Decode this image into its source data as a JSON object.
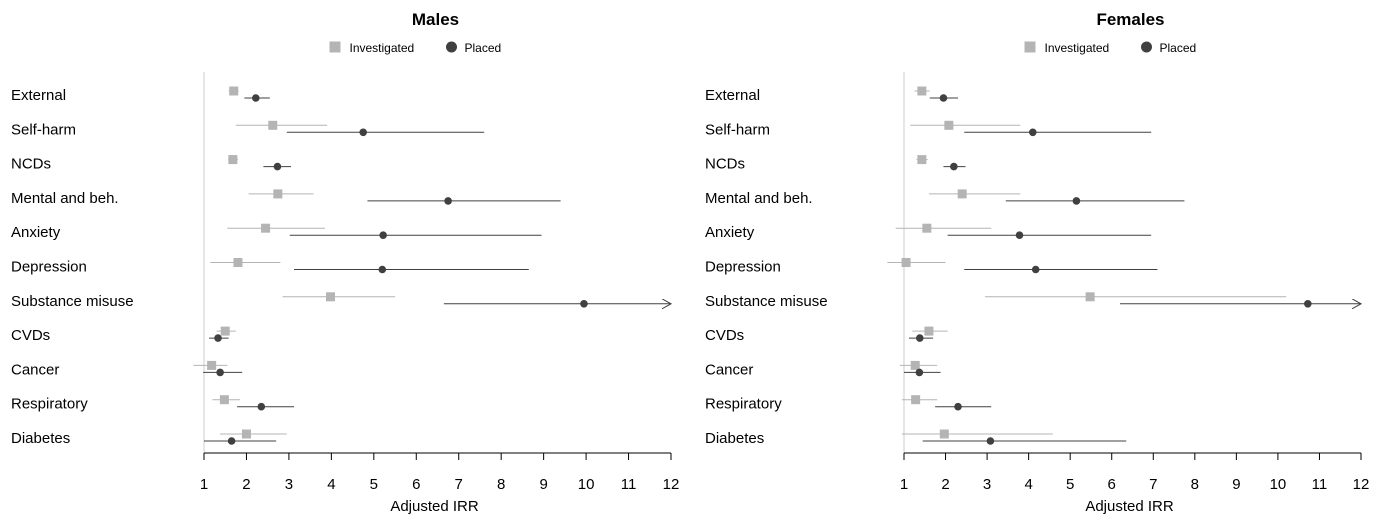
{
  "colors": {
    "investigated": "#b4b4b4",
    "placed": "#404040",
    "reference_line": "#cccccc",
    "axis": "#000000"
  },
  "chart_data": [
    {
      "type": "forest",
      "title": "Males",
      "xlabel": "Adjusted IRR",
      "xlim": [
        1,
        12
      ],
      "xticks": [
        1,
        2,
        3,
        4,
        5,
        6,
        7,
        8,
        9,
        10,
        11,
        12
      ],
      "reference_line": 1,
      "legend": {
        "placement": "top-center",
        "entries": [
          "Investigated",
          "Placed"
        ]
      },
      "categories": [
        "External",
        "Self-harm",
        "NCDs",
        "Mental and beh.",
        "Anxiety",
        "Depression",
        "Substance misuse",
        "CVDs",
        "Cancer",
        "Respiratory",
        "Diabetes"
      ],
      "series": [
        {
          "name": "Investigated",
          "marker": "square",
          "values": [
            1.7,
            2.62,
            1.68,
            2.74,
            2.45,
            1.8,
            3.98,
            1.5,
            1.18,
            1.48,
            2.0
          ],
          "lower": [
            1.58,
            1.75,
            1.57,
            2.05,
            1.55,
            1.15,
            2.85,
            1.3,
            0.75,
            1.2,
            1.38
          ],
          "upper": [
            1.82,
            3.9,
            1.8,
            3.58,
            3.85,
            2.8,
            5.5,
            1.75,
            1.55,
            1.85,
            2.95
          ]
        },
        {
          "name": "Placed",
          "marker": "circle",
          "values": [
            2.22,
            4.75,
            2.73,
            6.75,
            5.22,
            5.2,
            9.95,
            1.33,
            1.38,
            2.35,
            1.65
          ],
          "lower": [
            1.95,
            2.95,
            2.4,
            4.85,
            3.02,
            3.12,
            6.65,
            1.12,
            0.98,
            1.78,
            1.0
          ],
          "upper": [
            2.55,
            7.6,
            3.05,
            9.4,
            8.95,
            8.65,
            12.0,
            1.58,
            1.9,
            3.12,
            2.7
          ],
          "upper_truncated": [
            false,
            false,
            false,
            false,
            false,
            false,
            true,
            false,
            false,
            false,
            false
          ]
        }
      ]
    },
    {
      "type": "forest",
      "title": "Females",
      "xlabel": "Adjusted IRR",
      "xlim": [
        1,
        12
      ],
      "xticks": [
        1,
        2,
        3,
        4,
        5,
        6,
        7,
        8,
        9,
        10,
        11,
        12
      ],
      "reference_line": 1,
      "legend": {
        "placement": "top-center",
        "entries": [
          "Investigated",
          "Placed"
        ]
      },
      "categories": [
        "External",
        "Self-harm",
        "NCDs",
        "Mental and beh.",
        "Anxiety",
        "Depression",
        "Substance misuse",
        "CVDs",
        "Cancer",
        "Respiratory",
        "Diabetes"
      ],
      "series": [
        {
          "name": "Investigated",
          "marker": "square",
          "values": [
            1.43,
            2.08,
            1.43,
            2.4,
            1.55,
            1.05,
            5.48,
            1.6,
            1.27,
            1.28,
            1.97
          ],
          "lower": [
            1.25,
            1.15,
            1.3,
            1.6,
            0.8,
            0.6,
            2.95,
            1.2,
            0.9,
            0.95,
            0.95
          ],
          "upper": [
            1.62,
            3.8,
            1.57,
            3.8,
            3.1,
            2.0,
            10.2,
            2.05,
            1.8,
            1.8,
            4.58
          ]
        },
        {
          "name": "Placed",
          "marker": "circle",
          "values": [
            1.95,
            4.1,
            2.2,
            5.15,
            3.78,
            4.17,
            10.72,
            1.38,
            1.37,
            2.3,
            3.08
          ],
          "lower": [
            1.62,
            2.45,
            1.95,
            3.45,
            2.05,
            2.45,
            6.2,
            1.12,
            1.0,
            1.75,
            1.45
          ],
          "upper": [
            2.3,
            6.95,
            2.48,
            7.75,
            6.95,
            7.1,
            12.0,
            1.7,
            1.88,
            3.1,
            6.35
          ],
          "upper_truncated": [
            false,
            false,
            false,
            false,
            false,
            false,
            true,
            false,
            false,
            false,
            false
          ]
        }
      ]
    }
  ]
}
